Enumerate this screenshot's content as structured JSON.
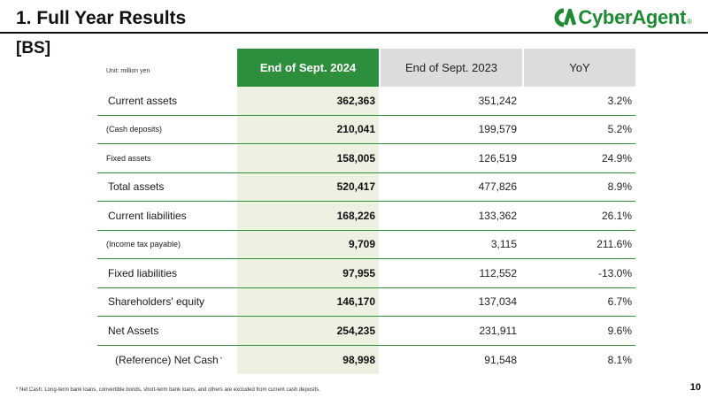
{
  "header": {
    "title": "1. Full Year Results",
    "logo_text": "CyberAgent",
    "logo_reg": "®",
    "colors": {
      "brand_green": "#1f8a34",
      "table_green": "#2d8e3c",
      "highlight_column": "#edf1e2",
      "header_gray": "#dcdcdc"
    }
  },
  "section": {
    "subtitle": "[BS]"
  },
  "table": {
    "unit_label": "Unit: million yen",
    "columns": [
      "End of Sept. 2024",
      "End of Sept. 2023",
      "YoY"
    ],
    "rows": [
      {
        "label": "Current assets",
        "v2024": "362,363",
        "v2023": "351,242",
        "yoy": "3.2%"
      },
      {
        "label": "(Cash deposits)",
        "v2024": "210,041",
        "v2023": "199,579",
        "yoy": "5.2%"
      },
      {
        "label": "Fixed assets",
        "v2024": "158,005",
        "v2023": "126,519",
        "yoy": "24.9%"
      },
      {
        "label": "Total assets",
        "v2024": "520,417",
        "v2023": "477,826",
        "yoy": "8.9%"
      },
      {
        "label": "Current liabilities",
        "v2024": "168,226",
        "v2023": "133,362",
        "yoy": "26.1%"
      },
      {
        "label": "(Income tax payable)",
        "v2024": "9,709",
        "v2023": "3,115",
        "yoy": "211.6%"
      },
      {
        "label": "Fixed liabilities",
        "v2024": "97,955",
        "v2023": "112,552",
        "yoy": "-13.0%"
      },
      {
        "label": "Shareholders' equity",
        "v2024": "146,170",
        "v2023": "137,034",
        "yoy": "6.7%"
      },
      {
        "label": "Net Assets",
        "v2024": "254,235",
        "v2023": "231,911",
        "yoy": "9.6%"
      },
      {
        "label": "(Reference) Net Cash",
        "label_mark": "*",
        "v2024": "98,998",
        "v2023": "91,548",
        "yoy": "8.1%"
      }
    ]
  },
  "footer": {
    "footnote": "*  Net Cash: Long-term bank loans, convertible bonds, short-term bank loans, and others are excluded from current cash deposits.",
    "page_number": "10"
  }
}
